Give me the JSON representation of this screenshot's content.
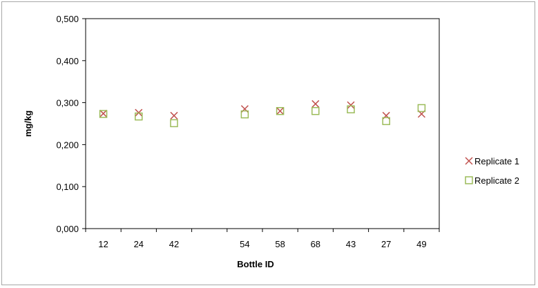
{
  "chart_data": {
    "type": "scatter",
    "xlabel": "Bottle ID",
    "ylabel": "mg/kg",
    "ylim": [
      0,
      0.5
    ],
    "yticks": [
      "0,000",
      "0,100",
      "0,200",
      "0,300",
      "0,400",
      "0,500"
    ],
    "grid": false,
    "legend_position": "right",
    "categories": [
      "12",
      "24",
      "42",
      "",
      "54",
      "58",
      "68",
      "43",
      "27",
      "49"
    ],
    "series": [
      {
        "name": "Replicate 1",
        "marker": "x",
        "color": "#c0504d",
        "values": [
          0.274,
          0.276,
          0.269,
          null,
          0.285,
          0.28,
          0.297,
          0.294,
          0.269,
          0.273
        ]
      },
      {
        "name": "Replicate 2",
        "marker": "square",
        "color": "#9bbb59",
        "values": [
          0.273,
          0.267,
          0.251,
          null,
          0.272,
          0.28,
          0.28,
          0.284,
          0.256,
          0.287
        ]
      }
    ]
  }
}
